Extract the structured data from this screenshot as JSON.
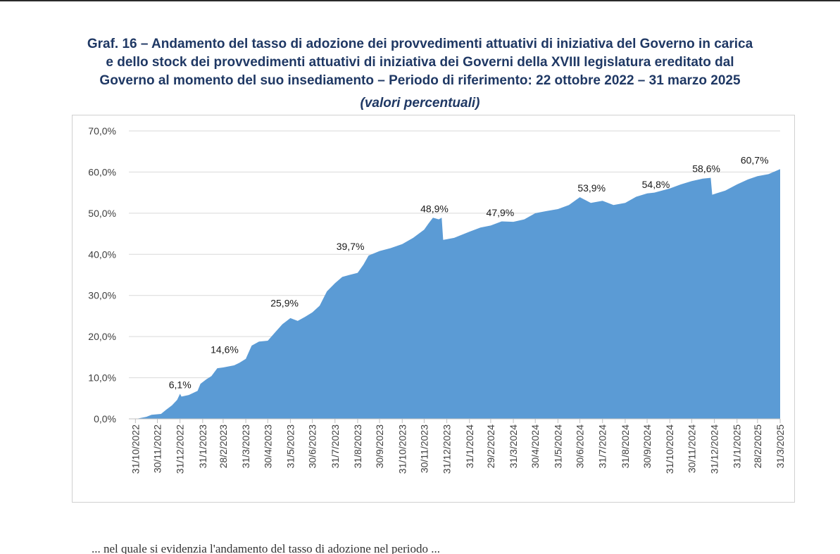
{
  "page": {
    "bottom_fragment": "... nel quale si evidenzia l'andamento del tasso di adozione nel periodo ..."
  },
  "chart_data": {
    "type": "area",
    "title_lines": [
      "Graf. 16 – Andamento del tasso di adozione dei provvedimenti attuativi di iniziativa del Governo in carica",
      "e dello stock dei provvedimenti attuativi di iniziativa dei Governi della XVIII legislatura ereditato dal",
      "Governo al momento del suo insediamento – Periodo di riferimento: 22 ottobre 2022 – 31 marzo 2025"
    ],
    "subtitle": "(valori percentuali)",
    "xlabel": "",
    "ylabel": "",
    "ylim": [
      0,
      70
    ],
    "y_ticks": [
      "0,0%",
      "10,0%",
      "20,0%",
      "30,0%",
      "40,0%",
      "50,0%",
      "60,0%",
      "70,0%"
    ],
    "x_start": "2022-10-22",
    "x_end": "2025-03-31",
    "x_ticks": [
      "31/10/2022",
      "30/11/2022",
      "31/12/2022",
      "31/1/2023",
      "28/2/2023",
      "31/3/2023",
      "30/4/2023",
      "31/5/2023",
      "30/6/2023",
      "31/7/2023",
      "31/8/2023",
      "30/9/2023",
      "31/10/2023",
      "30/11/2023",
      "31/12/2023",
      "31/1/2024",
      "29/2/2024",
      "31/3/2024",
      "30/4/2024",
      "31/5/2024",
      "30/6/2024",
      "31/7/2024",
      "31/8/2024",
      "30/9/2024",
      "31/10/2024",
      "30/11/2024",
      "31/12/2024",
      "31/1/2025",
      "28/2/2025",
      "31/3/2025"
    ],
    "grid": true,
    "series_color": "#5b9bd5",
    "series": [
      {
        "points": [
          [
            "2022-10-22",
            0.0
          ],
          [
            "2022-11-01",
            0.0
          ],
          [
            "2022-11-15",
            0.5
          ],
          [
            "2022-11-22",
            1.0
          ],
          [
            "2022-12-05",
            1.2
          ],
          [
            "2022-12-12",
            2.2
          ],
          [
            "2022-12-20",
            3.3
          ],
          [
            "2022-12-27",
            4.6
          ],
          [
            "2022-12-31",
            6.1
          ],
          [
            "2023-01-02",
            5.4
          ],
          [
            "2023-01-12",
            5.8
          ],
          [
            "2023-01-24",
            6.8
          ],
          [
            "2023-01-28",
            8.5
          ],
          [
            "2023-02-05",
            9.6
          ],
          [
            "2023-02-12",
            10.4
          ],
          [
            "2023-02-20",
            12.3
          ],
          [
            "2023-02-28",
            12.5
          ],
          [
            "2023-03-15",
            13.0
          ],
          [
            "2023-03-22",
            13.6
          ],
          [
            "2023-03-31",
            14.6
          ],
          [
            "2023-04-08",
            17.8
          ],
          [
            "2023-04-18",
            18.8
          ],
          [
            "2023-04-30",
            19.0
          ],
          [
            "2023-05-10",
            21.0
          ],
          [
            "2023-05-20",
            23.0
          ],
          [
            "2023-05-31",
            24.5
          ],
          [
            "2023-06-10",
            23.8
          ],
          [
            "2023-06-20",
            24.8
          ],
          [
            "2023-06-30",
            25.9
          ],
          [
            "2023-07-10",
            27.5
          ],
          [
            "2023-07-20",
            31.0
          ],
          [
            "2023-07-31",
            33.0
          ],
          [
            "2023-08-10",
            34.5
          ],
          [
            "2023-08-20",
            35.0
          ],
          [
            "2023-08-31",
            35.5
          ],
          [
            "2023-09-08",
            37.5
          ],
          [
            "2023-09-15",
            39.7
          ],
          [
            "2023-09-30",
            40.8
          ],
          [
            "2023-10-15",
            41.5
          ],
          [
            "2023-10-31",
            42.5
          ],
          [
            "2023-11-15",
            44.0
          ],
          [
            "2023-11-30",
            46.0
          ],
          [
            "2023-12-06",
            47.5
          ],
          [
            "2023-12-12",
            48.9
          ],
          [
            "2023-12-20",
            48.5
          ],
          [
            "2023-12-24",
            48.9
          ],
          [
            "2023-12-26",
            43.5
          ],
          [
            "2024-01-10",
            44.0
          ],
          [
            "2024-01-31",
            45.5
          ],
          [
            "2024-02-15",
            46.5
          ],
          [
            "2024-02-29",
            47.0
          ],
          [
            "2024-03-15",
            48.0
          ],
          [
            "2024-03-31",
            47.9
          ],
          [
            "2024-04-15",
            48.5
          ],
          [
            "2024-04-30",
            50.0
          ],
          [
            "2024-05-15",
            50.5
          ],
          [
            "2024-05-31",
            51.0
          ],
          [
            "2024-06-15",
            52.0
          ],
          [
            "2024-06-30",
            53.9
          ],
          [
            "2024-07-15",
            52.5
          ],
          [
            "2024-07-31",
            53.0
          ],
          [
            "2024-08-15",
            52.0
          ],
          [
            "2024-08-31",
            52.5
          ],
          [
            "2024-09-15",
            54.0
          ],
          [
            "2024-09-30",
            54.8
          ],
          [
            "2024-10-10",
            55.0
          ],
          [
            "2024-10-31",
            56.0
          ],
          [
            "2024-11-15",
            57.0
          ],
          [
            "2024-11-30",
            57.8
          ],
          [
            "2024-12-15",
            58.4
          ],
          [
            "2024-12-26",
            58.6
          ],
          [
            "2024-12-28",
            54.5
          ],
          [
            "2025-01-15",
            55.5
          ],
          [
            "2025-01-31",
            57.0
          ],
          [
            "2025-02-15",
            58.2
          ],
          [
            "2025-02-28",
            59.0
          ],
          [
            "2025-03-15",
            59.5
          ],
          [
            "2025-03-31",
            60.7
          ]
        ]
      }
    ],
    "data_labels": [
      {
        "date": "2022-12-31",
        "value": 6.1,
        "text": "6,1%"
      },
      {
        "date": "2023-03-02",
        "value": 14.6,
        "text": "14,6%"
      },
      {
        "date": "2023-05-23",
        "value": 25.9,
        "text": "25,9%"
      },
      {
        "date": "2023-08-21",
        "value": 39.7,
        "text": "39,7%"
      },
      {
        "date": "2023-12-14",
        "value": 48.9,
        "text": "48,9%"
      },
      {
        "date": "2024-03-13",
        "value": 47.9,
        "text": "47,9%"
      },
      {
        "date": "2024-07-16",
        "value": 53.9,
        "text": "53,9%"
      },
      {
        "date": "2024-10-12",
        "value": 54.8,
        "text": "54,8%"
      },
      {
        "date": "2024-12-20",
        "value": 58.6,
        "text": "58,6%"
      },
      {
        "date": "2025-02-24",
        "value": 60.7,
        "text": "60,7%"
      }
    ]
  }
}
